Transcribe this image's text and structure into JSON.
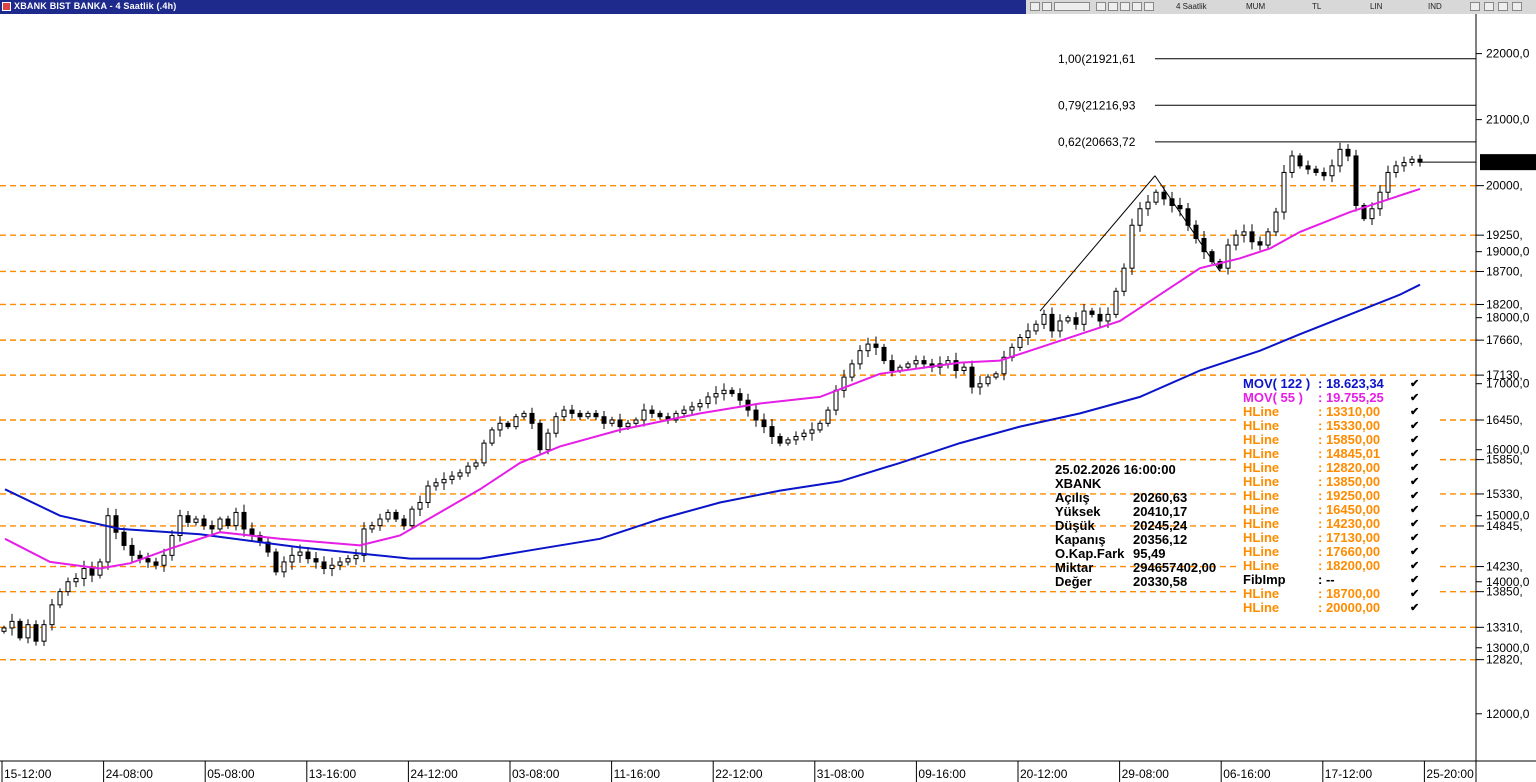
{
  "window": {
    "title": "XBANK BIST BANKA - 4 Saatlik (.4h)"
  },
  "toolbar": {
    "period": "4 Saatlik",
    "chart_type": "MUM",
    "currency": "TL",
    "scale": "LIN",
    "indicator": "IND"
  },
  "chart_data": {
    "type": "candlestick",
    "ylim": [
      11300,
      22600
    ],
    "y_ticks": [
      {
        "value": 22000,
        "label": "22000,0"
      },
      {
        "value": 21000,
        "label": "21000,0"
      },
      {
        "value": 19000,
        "label": "19000,0"
      },
      {
        "value": 18000,
        "label": "18000,0"
      },
      {
        "value": 17000,
        "label": "17000,0"
      },
      {
        "value": 16000,
        "label": "16000,0"
      },
      {
        "value": 15000,
        "label": "15000,0"
      },
      {
        "value": 14000,
        "label": "14000,0"
      },
      {
        "value": 13000,
        "label": "13000,0"
      },
      {
        "value": 12000,
        "label": "12000,0"
      }
    ],
    "x_ticks": [
      "15-12:00",
      "24-08:00",
      "05-08:00",
      "13-16:00",
      "24-12:00",
      "03-08:00",
      "11-16:00",
      "22-12:00",
      "31-08:00",
      "09-16:00",
      "20-12:00",
      "29-08:00",
      "06-16:00",
      "17-12:00",
      "25-20:00"
    ],
    "last_price_label": "20356,",
    "last_price": 20356,
    "horizontal_levels": [
      {
        "value": 20000,
        "label": "20000,"
      },
      {
        "value": 19250,
        "label": "19250,"
      },
      {
        "value": 18700,
        "label": "18700,"
      },
      {
        "value": 18200,
        "label": "18200,"
      },
      {
        "value": 17660,
        "label": "17660,"
      },
      {
        "value": 17130,
        "label": "17130,"
      },
      {
        "value": 16450,
        "label": "16450,"
      },
      {
        "value": 15850,
        "label": "15850,"
      },
      {
        "value": 15330,
        "label": "15330,"
      },
      {
        "value": 14845,
        "label": "14845,"
      },
      {
        "value": 14230,
        "label": "14230,"
      },
      {
        "value": 13850,
        "label": "13850,"
      },
      {
        "value": 13310,
        "label": "13310,"
      },
      {
        "value": 12820,
        "label": "12820,"
      }
    ],
    "fib_levels": [
      {
        "value": 21921.61,
        "label": "1,00(21921,61"
      },
      {
        "value": 21216.93,
        "label": "0,79(21216,93"
      },
      {
        "value": 20663.72,
        "label": "0,62(20663,72"
      }
    ],
    "close_path": [
      [
        0,
        13300
      ],
      [
        8,
        13400
      ],
      [
        16,
        13150
      ],
      [
        24,
        13350
      ],
      [
        32,
        13100
      ],
      [
        40,
        13350
      ],
      [
        48,
        13650
      ],
      [
        56,
        13850
      ],
      [
        64,
        14000
      ],
      [
        72,
        14050
      ],
      [
        80,
        14200
      ],
      [
        88,
        14100
      ],
      [
        96,
        14300
      ],
      [
        104,
        15000
      ],
      [
        112,
        14750
      ],
      [
        120,
        14550
      ],
      [
        128,
        14400
      ],
      [
        136,
        14350
      ],
      [
        144,
        14300
      ],
      [
        152,
        14250
      ],
      [
        160,
        14400
      ],
      [
        168,
        14700
      ],
      [
        176,
        15000
      ],
      [
        184,
        14900
      ],
      [
        192,
        14950
      ],
      [
        200,
        14850
      ],
      [
        208,
        14800
      ],
      [
        216,
        14950
      ],
      [
        224,
        14850
      ],
      [
        232,
        15050
      ],
      [
        240,
        14800
      ],
      [
        248,
        14700
      ],
      [
        256,
        14600
      ],
      [
        264,
        14450
      ],
      [
        272,
        14150
      ],
      [
        280,
        14300
      ],
      [
        288,
        14400
      ],
      [
        296,
        14450
      ],
      [
        304,
        14350
      ],
      [
        312,
        14300
      ],
      [
        320,
        14200
      ],
      [
        328,
        14250
      ],
      [
        336,
        14300
      ],
      [
        344,
        14350
      ],
      [
        352,
        14400
      ],
      [
        360,
        14800
      ],
      [
        368,
        14850
      ],
      [
        376,
        14950
      ],
      [
        384,
        15050
      ],
      [
        392,
        14950
      ],
      [
        400,
        14850
      ],
      [
        408,
        15100
      ],
      [
        416,
        15200
      ],
      [
        424,
        15450
      ],
      [
        432,
        15500
      ],
      [
        440,
        15550
      ],
      [
        448,
        15600
      ],
      [
        456,
        15650
      ],
      [
        464,
        15750
      ],
      [
        472,
        15800
      ],
      [
        480,
        16100
      ],
      [
        488,
        16300
      ],
      [
        496,
        16400
      ],
      [
        504,
        16350
      ],
      [
        512,
        16500
      ],
      [
        520,
        16550
      ],
      [
        528,
        16400
      ],
      [
        536,
        16000
      ],
      [
        544,
        16250
      ],
      [
        552,
        16500
      ],
      [
        560,
        16600
      ],
      [
        568,
        16550
      ],
      [
        576,
        16500
      ],
      [
        584,
        16550
      ],
      [
        592,
        16500
      ],
      [
        600,
        16400
      ],
      [
        608,
        16450
      ],
      [
        616,
        16350
      ],
      [
        624,
        16400
      ],
      [
        632,
        16450
      ],
      [
        640,
        16600
      ],
      [
        648,
        16550
      ],
      [
        656,
        16500
      ],
      [
        664,
        16450
      ],
      [
        672,
        16550
      ],
      [
        680,
        16600
      ],
      [
        688,
        16650
      ],
      [
        696,
        16700
      ],
      [
        704,
        16800
      ],
      [
        712,
        16850
      ],
      [
        720,
        16900
      ],
      [
        728,
        16850
      ],
      [
        736,
        16750
      ],
      [
        744,
        16600
      ],
      [
        752,
        16450
      ],
      [
        760,
        16350
      ],
      [
        768,
        16200
      ],
      [
        776,
        16100
      ],
      [
        784,
        16150
      ],
      [
        792,
        16200
      ],
      [
        800,
        16250
      ],
      [
        808,
        16300
      ],
      [
        816,
        16400
      ],
      [
        824,
        16600
      ],
      [
        832,
        16900
      ],
      [
        840,
        17100
      ],
      [
        848,
        17300
      ],
      [
        856,
        17500
      ],
      [
        864,
        17600
      ],
      [
        872,
        17550
      ],
      [
        880,
        17350
      ],
      [
        888,
        17200
      ],
      [
        896,
        17250
      ],
      [
        904,
        17300
      ],
      [
        912,
        17350
      ],
      [
        920,
        17300
      ],
      [
        928,
        17250
      ],
      [
        936,
        17300
      ],
      [
        944,
        17350
      ],
      [
        952,
        17200
      ],
      [
        960,
        17250
      ],
      [
        968,
        16950
      ],
      [
        976,
        17000
      ],
      [
        984,
        17100
      ],
      [
        992,
        17150
      ],
      [
        1000,
        17400
      ],
      [
        1008,
        17550
      ],
      [
        1016,
        17700
      ],
      [
        1024,
        17800
      ],
      [
        1032,
        17900
      ],
      [
        1040,
        18050
      ],
      [
        1048,
        17800
      ],
      [
        1056,
        17950
      ],
      [
        1064,
        18000
      ],
      [
        1072,
        17900
      ],
      [
        1080,
        18100
      ],
      [
        1088,
        18050
      ],
      [
        1096,
        17950
      ],
      [
        1104,
        18050
      ],
      [
        1112,
        18400
      ],
      [
        1120,
        18750
      ],
      [
        1128,
        19400
      ],
      [
        1136,
        19650
      ],
      [
        1144,
        19750
      ],
      [
        1152,
        19900
      ],
      [
        1160,
        19800
      ],
      [
        1168,
        19700
      ],
      [
        1176,
        19650
      ],
      [
        1184,
        19400
      ],
      [
        1192,
        19200
      ],
      [
        1200,
        19000
      ],
      [
        1208,
        18850
      ],
      [
        1216,
        18750
      ],
      [
        1224,
        19100
      ],
      [
        1232,
        19250
      ],
      [
        1240,
        19300
      ],
      [
        1248,
        19150
      ],
      [
        1256,
        19100
      ],
      [
        1264,
        19300
      ],
      [
        1272,
        19600
      ],
      [
        1280,
        20200
      ],
      [
        1288,
        20450
      ],
      [
        1296,
        20300
      ],
      [
        1304,
        20250
      ],
      [
        1312,
        20200
      ],
      [
        1320,
        20150
      ],
      [
        1328,
        20300
      ],
      [
        1336,
        20550
      ],
      [
        1344,
        20450
      ],
      [
        1352,
        19700
      ],
      [
        1360,
        19500
      ],
      [
        1368,
        19650
      ],
      [
        1376,
        19900
      ],
      [
        1384,
        20200
      ],
      [
        1392,
        20300
      ],
      [
        1400,
        20350
      ],
      [
        1408,
        20400
      ],
      [
        1416,
        20356
      ]
    ],
    "series": [
      {
        "name": "MOV( 122 )",
        "color": "#0a14c8",
        "points": [
          [
            5,
            15400
          ],
          [
            60,
            15000
          ],
          [
            120,
            14800
          ],
          [
            200,
            14720
          ],
          [
            300,
            14520
          ],
          [
            410,
            14350
          ],
          [
            480,
            14350
          ],
          [
            540,
            14500
          ],
          [
            600,
            14650
          ],
          [
            660,
            14950
          ],
          [
            720,
            15200
          ],
          [
            780,
            15380
          ],
          [
            840,
            15520
          ],
          [
            900,
            15800
          ],
          [
            960,
            16100
          ],
          [
            1020,
            16350
          ],
          [
            1080,
            16550
          ],
          [
            1140,
            16800
          ],
          [
            1200,
            17200
          ],
          [
            1260,
            17500
          ],
          [
            1300,
            17750
          ],
          [
            1350,
            18050
          ],
          [
            1400,
            18350
          ],
          [
            1420,
            18500
          ]
        ]
      },
      {
        "name": "MOV( 55 )",
        "color": "#e61ee6",
        "points": [
          [
            5,
            14650
          ],
          [
            50,
            14300
          ],
          [
            100,
            14200
          ],
          [
            130,
            14280
          ],
          [
            170,
            14500
          ],
          [
            220,
            14750
          ],
          [
            280,
            14650
          ],
          [
            360,
            14550
          ],
          [
            400,
            14700
          ],
          [
            440,
            15050
          ],
          [
            480,
            15400
          ],
          [
            520,
            15800
          ],
          [
            560,
            16050
          ],
          [
            620,
            16300
          ],
          [
            700,
            16550
          ],
          [
            760,
            16700
          ],
          [
            820,
            16800
          ],
          [
            880,
            17150
          ],
          [
            960,
            17320
          ],
          [
            1000,
            17350
          ],
          [
            1040,
            17550
          ],
          [
            1080,
            17750
          ],
          [
            1120,
            17950
          ],
          [
            1160,
            18350
          ],
          [
            1200,
            18750
          ],
          [
            1240,
            18900
          ],
          [
            1270,
            19050
          ],
          [
            1300,
            19300
          ],
          [
            1350,
            19600
          ],
          [
            1390,
            19800
          ],
          [
            1420,
            19950
          ]
        ]
      }
    ]
  },
  "info": {
    "date": "25.02.2026  16:00:00",
    "symbol": "XBANK",
    "rows": [
      {
        "label": "Açılış",
        "value": "20260,63"
      },
      {
        "label": "Yüksek",
        "value": "20410,17"
      },
      {
        "label": "Düşük",
        "value": "20245,24"
      },
      {
        "label": "Kapanış",
        "value": "20356,12"
      },
      {
        "label": "O.Kap.Fark",
        "value": "95,49"
      },
      {
        "label": "Miktar",
        "value": "294657402,00"
      },
      {
        "label": "Değer",
        "value": "20330,58"
      }
    ]
  },
  "legend": [
    {
      "name": "MOV( 122 )",
      "value": ": 18.623,34",
      "color": "#0a14c8"
    },
    {
      "name": "MOV( 55 )",
      "value": ": 19.755,25",
      "color": "#e61ee6"
    },
    {
      "name": "HLine",
      "value": ": 13310,00",
      "color": "#ff8c00"
    },
    {
      "name": "HLine",
      "value": ": 15330,00",
      "color": "#ff8c00"
    },
    {
      "name": "HLine",
      "value": ": 15850,00",
      "color": "#ff8c00"
    },
    {
      "name": "HLine",
      "value": ": 14845,01",
      "color": "#ff8c00"
    },
    {
      "name": "HLine",
      "value": ": 12820,00",
      "color": "#ff8c00"
    },
    {
      "name": "HLine",
      "value": ": 13850,00",
      "color": "#ff8c00"
    },
    {
      "name": "HLine",
      "value": ": 19250,00",
      "color": "#ff8c00"
    },
    {
      "name": "HLine",
      "value": ": 16450,00",
      "color": "#ff8c00"
    },
    {
      "name": "HLine",
      "value": ": 14230,00",
      "color": "#ff8c00"
    },
    {
      "name": "HLine",
      "value": ": 17130,00",
      "color": "#ff8c00"
    },
    {
      "name": "HLine",
      "value": ": 17660,00",
      "color": "#ff8c00"
    },
    {
      "name": "HLine",
      "value": ": 18200,00",
      "color": "#ff8c00"
    },
    {
      "name": "FibImp",
      "value": ": --",
      "color": "#000000"
    },
    {
      "name": "HLine",
      "value": ": 18700,00",
      "color": "#ff8c00"
    },
    {
      "name": "HLine",
      "value": ": 20000,00",
      "color": "#ff8c00"
    }
  ],
  "colors": {
    "level": "#ff8c00",
    "titlebar": "#1e2a8c"
  }
}
